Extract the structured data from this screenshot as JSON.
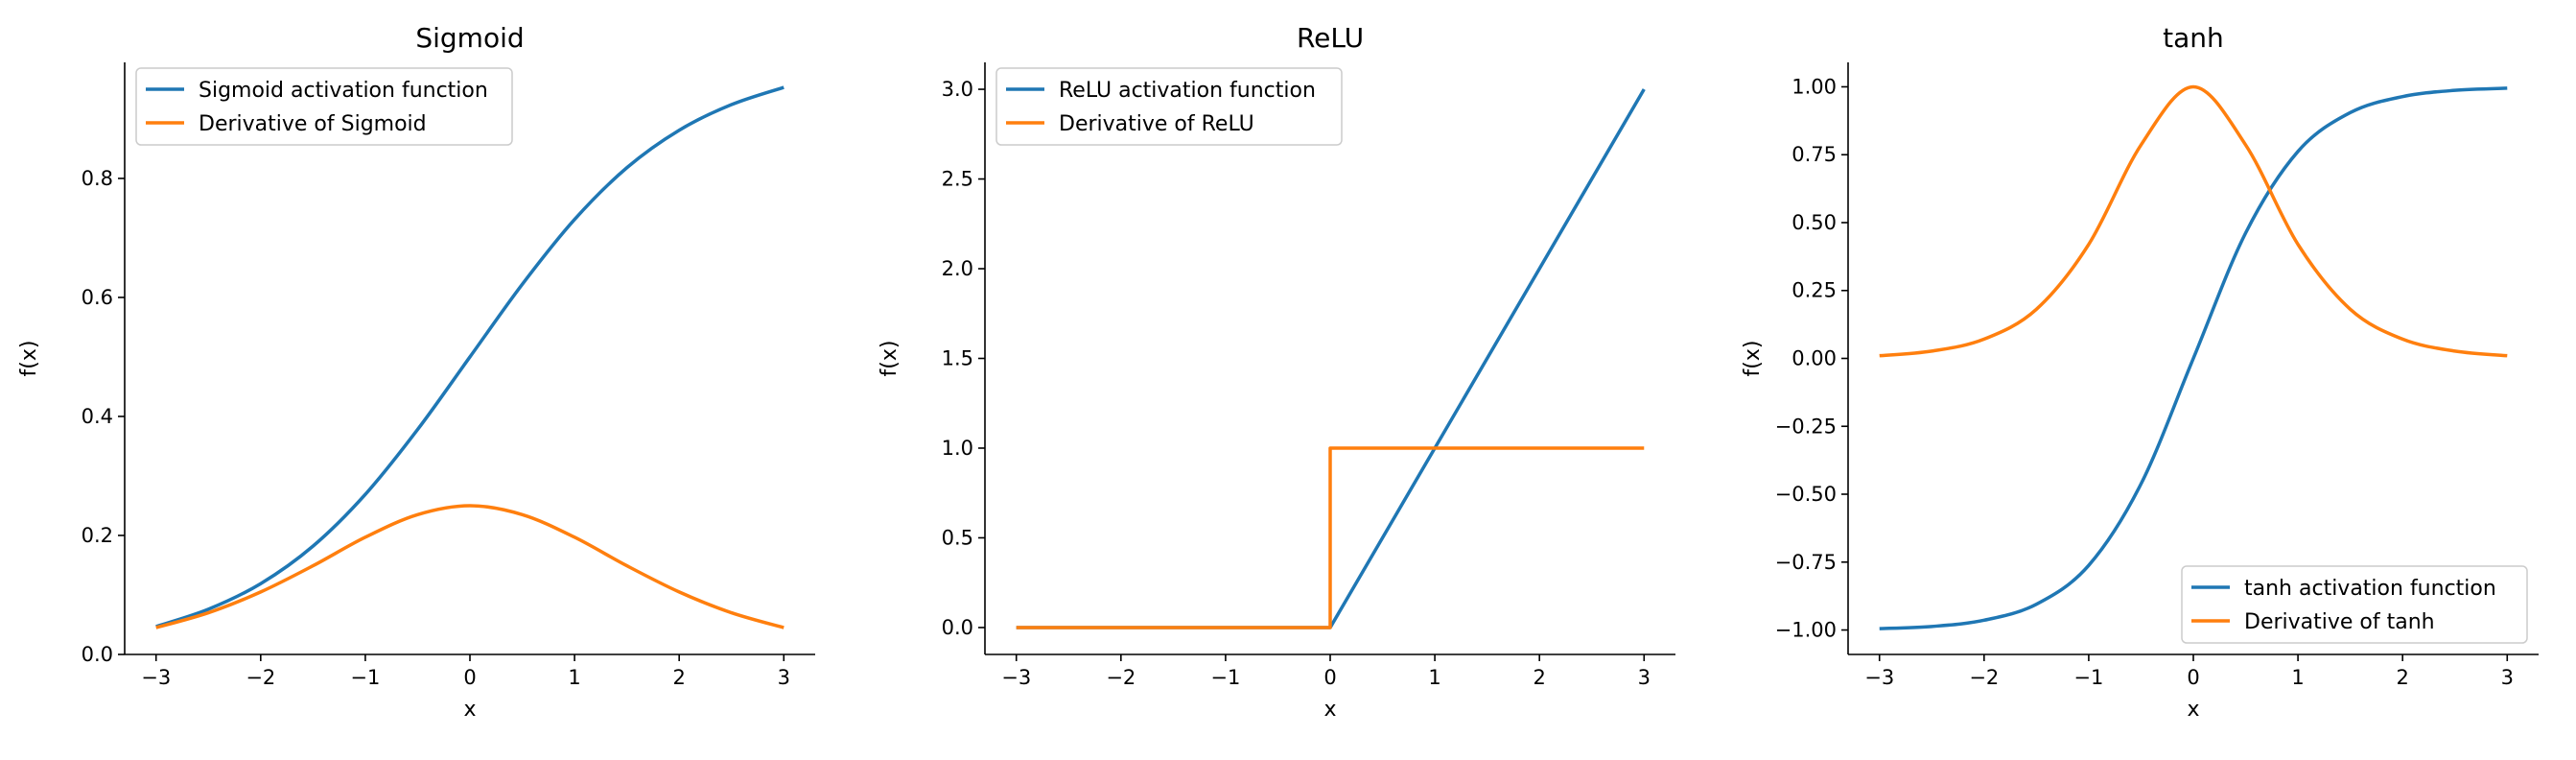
{
  "chart_data": [
    {
      "type": "line",
      "title": "Sigmoid",
      "xlabel": "x",
      "ylabel": "f(x)",
      "xlim": [
        -3.3,
        3.3
      ],
      "ylim": [
        0.0,
        0.995
      ],
      "x_ticks": [
        -3,
        -2,
        -1,
        0,
        1,
        2,
        3
      ],
      "y_ticks": [
        0.0,
        0.2,
        0.4,
        0.6,
        0.8
      ],
      "y_tick_labels": [
        "0.0",
        "0.2",
        "0.4",
        "0.6",
        "0.8"
      ],
      "grid": false,
      "legend_position": "upper-left",
      "series": [
        {
          "name": "Sigmoid activation function",
          "color": "#1f77b4",
          "x": [
            -3,
            -2.5,
            -2,
            -1.5,
            -1,
            -0.5,
            0,
            0.5,
            1,
            1.5,
            2,
            2.5,
            3
          ],
          "y": [
            0.047,
            0.076,
            0.119,
            0.182,
            0.269,
            0.378,
            0.5,
            0.622,
            0.731,
            0.818,
            0.881,
            0.924,
            0.953
          ]
        },
        {
          "name": "Derivative of Sigmoid",
          "color": "#ff7f0e",
          "x": [
            -3,
            -2.5,
            -2,
            -1.5,
            -1,
            -0.5,
            0,
            0.5,
            1,
            1.5,
            2,
            2.5,
            3
          ],
          "y": [
            0.045,
            0.07,
            0.105,
            0.149,
            0.197,
            0.235,
            0.25,
            0.235,
            0.197,
            0.149,
            0.105,
            0.07,
            0.045
          ]
        }
      ]
    },
    {
      "type": "line",
      "title": "ReLU",
      "xlabel": "x",
      "ylabel": "f(x)",
      "xlim": [
        -3.3,
        3.3
      ],
      "ylim": [
        -0.15,
        3.15
      ],
      "x_ticks": [
        -3,
        -2,
        -1,
        0,
        1,
        2,
        3
      ],
      "y_ticks": [
        0.0,
        0.5,
        1.0,
        1.5,
        2.0,
        2.5,
        3.0
      ],
      "y_tick_labels": [
        "0.0",
        "0.5",
        "1.0",
        "1.5",
        "2.0",
        "2.5",
        "3.0"
      ],
      "grid": false,
      "legend_position": "upper-left",
      "series": [
        {
          "name": "ReLU activation function",
          "color": "#1f77b4",
          "x": [
            -3,
            0,
            3
          ],
          "y": [
            0,
            0,
            3
          ]
        },
        {
          "name": "Derivative of ReLU",
          "color": "#ff7f0e",
          "x": [
            -3,
            0,
            0,
            3
          ],
          "y": [
            0,
            0,
            1,
            1
          ]
        }
      ]
    },
    {
      "type": "line",
      "title": "tanh",
      "xlabel": "x",
      "ylabel": "f(x)",
      "xlim": [
        -3.3,
        3.3
      ],
      "ylim": [
        -1.09,
        1.09
      ],
      "x_ticks": [
        -3,
        -2,
        -1,
        0,
        1,
        2,
        3
      ],
      "y_ticks": [
        -1.0,
        -0.75,
        -0.5,
        -0.25,
        0.0,
        0.25,
        0.5,
        0.75,
        1.0
      ],
      "y_tick_labels": [
        "−1.00",
        "−0.75",
        "−0.50",
        "−0.25",
        "0.00",
        "0.25",
        "0.50",
        "0.75",
        "1.00"
      ],
      "grid": false,
      "legend_position": "lower-right",
      "series": [
        {
          "name": "tanh activation function",
          "color": "#1f77b4",
          "x": [
            -3,
            -2.5,
            -2,
            -1.5,
            -1,
            -0.5,
            0,
            0.5,
            1,
            1.5,
            2,
            2.5,
            3
          ],
          "y": [
            -0.995,
            -0.987,
            -0.964,
            -0.905,
            -0.762,
            -0.462,
            0,
            0.462,
            0.762,
            0.905,
            0.964,
            0.987,
            0.995
          ]
        },
        {
          "name": "Derivative of tanh",
          "color": "#ff7f0e",
          "x": [
            -3,
            -2.5,
            -2,
            -1.5,
            -1,
            -0.5,
            0,
            0.5,
            1,
            1.5,
            2,
            2.5,
            3
          ],
          "y": [
            0.01,
            0.027,
            0.071,
            0.181,
            0.42,
            0.786,
            1.0,
            0.786,
            0.42,
            0.181,
            0.071,
            0.027,
            0.01
          ]
        }
      ]
    }
  ]
}
